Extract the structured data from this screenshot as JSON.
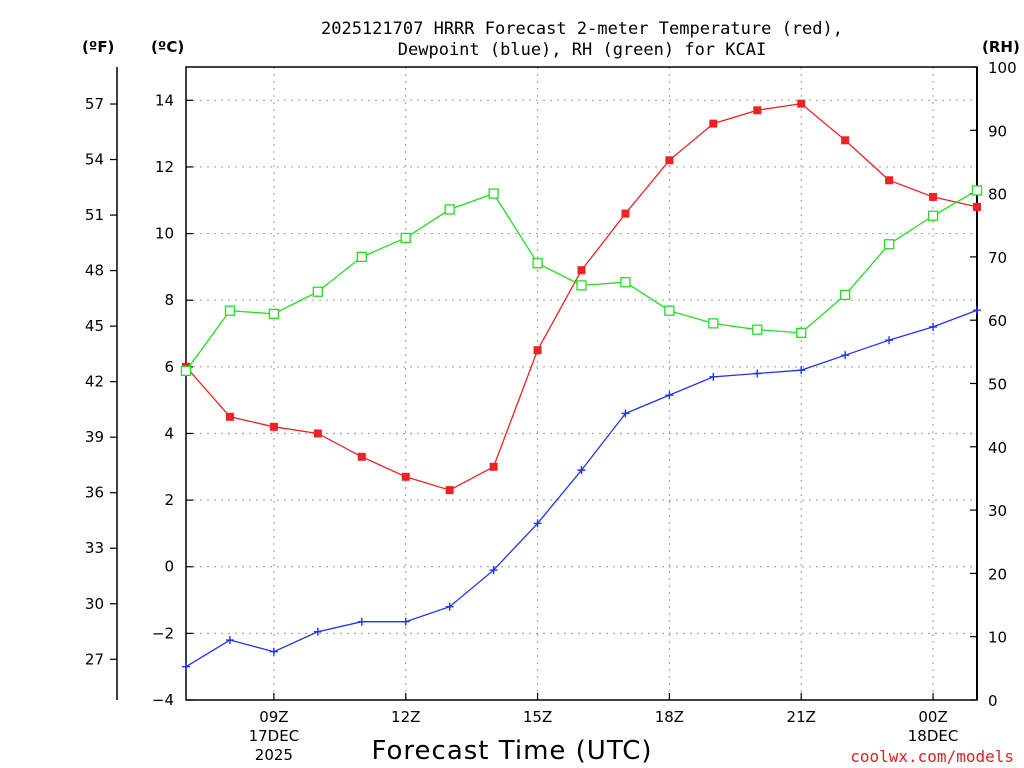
{
  "chart_data": {
    "type": "line",
    "title_line1": "2025121707 HRRR Forecast 2-meter Temperature (red),",
    "title_line2": "Dewpoint (blue), RH (green) for KCAI",
    "xlabel": "Forecast Time (UTC)",
    "credit": "coolwx.com/models",
    "unit_f": "(ºF)",
    "unit_c": "(ºC)",
    "unit_rh": "(RH)",
    "x": [
      7,
      8,
      9,
      10,
      11,
      12,
      13,
      14,
      15,
      16,
      17,
      18,
      19,
      20,
      21,
      22,
      23,
      24,
      25
    ],
    "xlim": [
      7,
      25
    ],
    "x_ticks": [
      {
        "x": 9,
        "label": "09Z",
        "label2": "17DEC",
        "label3": "2025"
      },
      {
        "x": 12,
        "label": "12Z",
        "label2": "",
        "label3": ""
      },
      {
        "x": 15,
        "label": "15Z",
        "label2": "",
        "label3": ""
      },
      {
        "x": 18,
        "label": "18Z",
        "label2": "",
        "label3": ""
      },
      {
        "x": 21,
        "label": "21Z",
        "label2": "",
        "label3": ""
      },
      {
        "x": 24,
        "label": "00Z",
        "label2": "18DEC",
        "label3": ""
      }
    ],
    "y_left_c": {
      "min": -4,
      "max": 15,
      "ticks": [
        "-4",
        "-2",
        "0",
        "2",
        "4",
        "6",
        "8",
        "10",
        "12",
        "14"
      ]
    },
    "y_left_f": {
      "ticks": [
        "27",
        "30",
        "33",
        "36",
        "39",
        "42",
        "45",
        "48",
        "51",
        "54",
        "57"
      ]
    },
    "y_right_rh": {
      "min": 0,
      "max": 100,
      "ticks": [
        "0",
        "10",
        "20",
        "30",
        "40",
        "50",
        "60",
        "70",
        "80",
        "90",
        "100"
      ]
    },
    "series": [
      {
        "name": "Temperature",
        "axis": "c",
        "color": "#ee2222",
        "marker": "filled-square",
        "values": [
          6.0,
          4.5,
          4.2,
          4.0,
          3.3,
          2.7,
          2.3,
          3.0,
          6.5,
          8.9,
          10.6,
          12.2,
          13.3,
          13.7,
          13.9,
          12.8,
          11.6,
          11.1,
          10.8
        ]
      },
      {
        "name": "Dewpoint",
        "axis": "c",
        "color": "#2233ee",
        "marker": "plus",
        "values": [
          -3.0,
          -2.2,
          -2.55,
          -1.95,
          -1.65,
          -1.65,
          -1.2,
          -0.1,
          1.3,
          2.9,
          4.6,
          5.15,
          5.7,
          5.8,
          5.9,
          6.35,
          6.8,
          7.2,
          7.7
        ]
      },
      {
        "name": "RH",
        "axis": "rh",
        "color": "#22dd22",
        "marker": "open-square",
        "values": [
          52,
          61.5,
          61,
          64.5,
          70,
          73,
          77.5,
          80,
          69,
          65.5,
          66,
          61.5,
          59.5,
          58.5,
          58,
          64,
          72,
          76.5,
          80.5
        ]
      }
    ]
  }
}
